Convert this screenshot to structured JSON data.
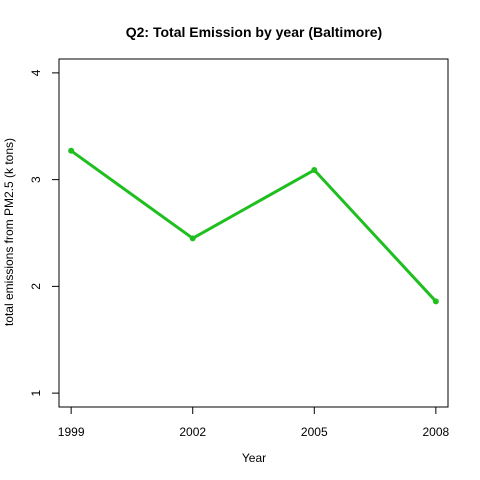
{
  "chart_data": {
    "type": "line",
    "title": "Q2: Total Emission by year (Baltimore)",
    "xlabel": "Year",
    "ylabel": "total emissions from PM2.5 (k tons)",
    "x": [
      1999,
      2002,
      2005,
      2008
    ],
    "series": [
      {
        "values": [
          3.27,
          2.45,
          3.09,
          1.86
        ],
        "color": "#1fbf1f"
      }
    ],
    "xticks": [
      "1999",
      "2002",
      "2005",
      "2008"
    ],
    "yticks": [
      "1",
      "2",
      "3",
      "4"
    ],
    "xlim": [
      1998.7,
      2008.3
    ],
    "ylim": [
      0.87,
      4.13
    ],
    "grid": false,
    "legend": "none"
  }
}
